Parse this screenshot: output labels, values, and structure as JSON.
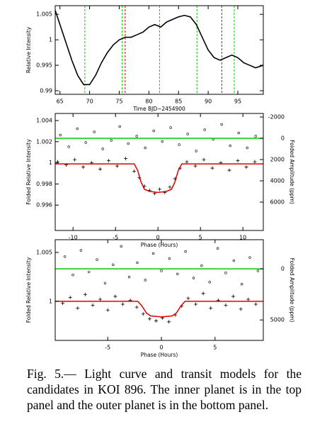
{
  "chart_data": [
    {
      "type": "line",
      "xlabel": "Time BJD−2454900",
      "ylabel": "Relative Intensity",
      "xlim": [
        64.2,
        99.3
      ],
      "ylim": [
        0.9893,
        1.0067
      ],
      "xticks": [
        65,
        70,
        75,
        80,
        85,
        90,
        95
      ],
      "yticks": [
        0.99,
        0.995,
        1,
        1.005
      ],
      "vlines": [
        {
          "x": 69.2,
          "color": "#00cc00"
        },
        {
          "x": 75.5,
          "color": "#00cc00"
        },
        {
          "x": 76.0,
          "color": "#dd0000"
        },
        {
          "x": 81.8,
          "color": "#00cc00"
        },
        {
          "x": 88.1,
          "color": "#00cc00"
        },
        {
          "x": 92.3,
          "color": "#dd0000"
        },
        {
          "x": 94.4,
          "color": "#00cc00"
        }
      ],
      "series": [
        {
          "kind": "line",
          "color": "#000000",
          "x": [
            64.2,
            65,
            66,
            67,
            68,
            69,
            70,
            71,
            72,
            73,
            74,
            75,
            76,
            77,
            78,
            79,
            80,
            81,
            82,
            83,
            84,
            85,
            86,
            87,
            88,
            89,
            90,
            91,
            92,
            93,
            94,
            95,
            96,
            97,
            98,
            99.3
          ],
          "values": [
            1.0058,
            1.003,
            0.9995,
            0.996,
            0.993,
            0.9912,
            0.9912,
            0.993,
            0.9955,
            0.9975,
            0.999,
            1.0,
            1.0005,
            1.0005,
            1.001,
            1.0015,
            1.0025,
            1.003,
            1.0025,
            1.0035,
            1.004,
            1.0045,
            1.0048,
            1.0045,
            1.003,
            1.0005,
            0.998,
            0.9965,
            0.996,
            0.9965,
            0.997,
            0.9965,
            0.9955,
            0.995,
            0.9945,
            0.995
          ]
        }
      ]
    },
    {
      "type": "scatter",
      "xlabel": "Phase (Hours)",
      "ylabel": "Folded Relative Intensity",
      "y2label": "Folded Amplitude (ppm)",
      "xlim": [
        -12.1,
        12.4
      ],
      "ylim": [
        0.9936,
        1.00467
      ],
      "y2lim": [
        8667,
        -2333
      ],
      "xticks": [
        -10,
        -5,
        0,
        5,
        10
      ],
      "yticks": [
        0.996,
        0.998,
        1,
        1.002,
        1.004
      ],
      "y2ticks": [
        -2000,
        0,
        2000,
        4000,
        6000
      ],
      "series": [
        {
          "kind": "circle",
          "color": "#000000",
          "axis": "y2",
          "x": [
            -11.5,
            -10.5,
            -9.5,
            -8.5,
            -7.5,
            -6.5,
            -5.5,
            -4.5,
            -3.5,
            -2.5,
            -1.5,
            -0.5,
            0.5,
            1.5,
            2.5,
            3.5,
            4.5,
            5.5,
            6.5,
            7.5,
            8.5,
            9.5,
            10.5,
            11.5
          ],
          "values": [
            -300,
            800,
            -900,
            400,
            -600,
            1000,
            200,
            -1100,
            500,
            -200,
            900,
            -700,
            300,
            -1000,
            600,
            -400,
            1200,
            -800,
            100,
            -1300,
            700,
            -500,
            900,
            -200
          ]
        },
        {
          "kind": "plus",
          "color": "#000000",
          "x": [
            -11.8,
            -10.8,
            -9.8,
            -8.8,
            -7.8,
            -6.8,
            -5.8,
            -4.8,
            -3.8,
            -2.8,
            -2.2,
            -1.6,
            -1,
            -0.4,
            0.2,
            0.8,
            1.4,
            2,
            2.6,
            3.4,
            4.4,
            5.4,
            6.4,
            7.4,
            8.4,
            9.4,
            10.4,
            11.4
          ],
          "values": [
            1.0001,
            0.9998,
            1.0003,
            0.9996,
            1.0,
            0.9994,
            1.0002,
            0.9997,
            1.0004,
            0.9992,
            0.9986,
            0.9978,
            0.9974,
            0.9971,
            0.9975,
            0.9972,
            0.9977,
            0.9985,
            0.9995,
            1.0001,
            0.9997,
            1.0003,
            0.9995,
            1.0,
            0.9993,
            1.0002,
            0.9996,
            1.0001
          ]
        },
        {
          "kind": "line",
          "color": "#00cc00",
          "axis": "y2",
          "x": [
            -12.1,
            12.4
          ],
          "values": [
            0,
            0
          ]
        },
        {
          "kind": "line",
          "color": "#dd0000",
          "x": [
            -12.1,
            -2.8,
            -2.4,
            -2,
            -1.6,
            -1,
            0,
            1,
            1.6,
            2,
            2.4,
            2.8,
            12.4
          ],
          "values": [
            0.9999,
            0.9999,
            0.9993,
            0.9982,
            0.9975,
            0.9973,
            0.9972,
            0.9973,
            0.9975,
            0.9982,
            0.9993,
            0.9999,
            0.9999
          ]
        }
      ]
    },
    {
      "type": "scatter",
      "xlabel": "Phase (Hours)",
      "ylabel": "Folded Relative Intensity",
      "y2label": "Folded Amplitude (ppm)",
      "xlim": [
        -9.9,
        9.5
      ],
      "ylim": [
        0.996,
        1.0063
      ],
      "y2lim": [
        7000,
        -2850
      ],
      "xticks": [
        -5,
        0,
        5
      ],
      "yticks": [
        1,
        1.005
      ],
      "y2ticks": [
        0,
        5000
      ],
      "series": [
        {
          "kind": "circle",
          "color": "#000000",
          "axis": "y2",
          "x": [
            -9,
            -8.25,
            -7.5,
            -6.75,
            -6,
            -5.25,
            -4.5,
            -3.75,
            -3,
            -2.25,
            -1.5,
            -0.75,
            0,
            0.75,
            1.5,
            2.25,
            3,
            3.75,
            4.5,
            5.25,
            6,
            6.75,
            7.5,
            8.25,
            9
          ],
          "values": [
            -1200,
            600,
            -1800,
            300,
            -900,
            1400,
            -400,
            -2200,
            800,
            -600,
            1100,
            -1500,
            200,
            -1000,
            500,
            -1700,
            900,
            -300,
            1300,
            -2000,
            400,
            -800,
            1500,
            -1100,
            200
          ]
        },
        {
          "kind": "plus",
          "color": "#000000",
          "x": [
            -9.2,
            -8.5,
            -7.8,
            -7.1,
            -6.4,
            -5.7,
            -5,
            -4.3,
            -3.6,
            -2.9,
            -2.3,
            -1.7,
            -1.1,
            -0.5,
            0.1,
            0.7,
            1.3,
            1.9,
            2.5,
            3.2,
            3.9,
            4.6,
            5.3,
            6,
            6.7,
            7.4,
            8.1,
            8.8
          ],
          "values": [
            0.9998,
            1.0004,
            0.9993,
            1.0007,
            0.9996,
            1.0002,
            0.9991,
            1.0005,
            0.9997,
            1.0001,
            0.9994,
            0.9987,
            0.9982,
            0.998,
            0.9983,
            0.9979,
            0.9986,
            0.9995,
            1.0003,
            0.9997,
            1.0008,
            0.9993,
            1.0001,
            0.9996,
            1.0005,
            0.9992,
            1.0002,
            0.9997
          ]
        },
        {
          "kind": "line",
          "color": "#00cc00",
          "axis": "y2",
          "x": [
            -9.9,
            9.5
          ],
          "values": [
            0,
            0
          ]
        },
        {
          "kind": "line",
          "color": "#dd0000",
          "x": [
            -9.9,
            -2.2,
            -1.8,
            -1.4,
            -1,
            0,
            1,
            1.4,
            1.8,
            2.2,
            9.5
          ],
          "values": [
            1.0,
            1.0,
            0.9995,
            0.9988,
            0.9985,
            0.9984,
            0.9985,
            0.9988,
            0.9995,
            1.0,
            1.0
          ]
        }
      ]
    }
  ],
  "caption": "Fig. 5.— Light curve and transit models for the candidates in KOI 896. The inner planet is in the top panel and the outer planet is in the bottom panel."
}
